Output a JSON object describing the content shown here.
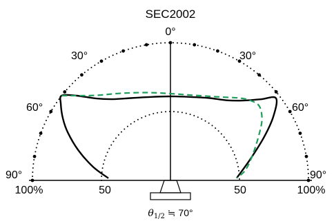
{
  "chart_data": {
    "type": "polar",
    "title": "SEC2002",
    "angle_labels": {
      "top": "0°",
      "left_30": "30°",
      "right_30": "30°",
      "left_60": "60°",
      "right_60": "60°",
      "left_90": "90°",
      "right_90": "90°"
    },
    "radial_labels": {
      "left_100": "100%",
      "left_50": "50",
      "right_50": "50",
      "right_100": "100%"
    },
    "radial_range": [
      0,
      100
    ],
    "grid": "dotted circles at 50% and 100%",
    "series": [
      {
        "color": "#000000",
        "style": "solid",
        "points": [
          {
            "angle": -88,
            "r": 45
          },
          {
            "angle": -80,
            "r": 57
          },
          {
            "angle": -72,
            "r": 70
          },
          {
            "angle": -65,
            "r": 82
          },
          {
            "angle": -60,
            "r": 90
          },
          {
            "angle": -55,
            "r": 97
          },
          {
            "angle": -52,
            "r": 100
          },
          {
            "angle": -48,
            "r": 92
          },
          {
            "angle": -42,
            "r": 80
          },
          {
            "angle": -35,
            "r": 72
          },
          {
            "angle": -25,
            "r": 66
          },
          {
            "angle": -12,
            "r": 62
          },
          {
            "angle": 0,
            "r": 61
          },
          {
            "angle": 12,
            "r": 62
          },
          {
            "angle": 25,
            "r": 66
          },
          {
            "angle": 35,
            "r": 71
          },
          {
            "angle": 42,
            "r": 78
          },
          {
            "angle": 48,
            "r": 88
          },
          {
            "angle": 52,
            "r": 97
          },
          {
            "angle": 58,
            "r": 88
          },
          {
            "angle": 65,
            "r": 75
          },
          {
            "angle": 75,
            "r": 60
          },
          {
            "angle": 88,
            "r": 48
          }
        ]
      },
      {
        "color": "#1e9e5a",
        "style": "dashed",
        "points": [
          {
            "angle": -52,
            "r": 100
          },
          {
            "angle": -42,
            "r": 83
          },
          {
            "angle": -30,
            "r": 73
          },
          {
            "angle": -15,
            "r": 66
          },
          {
            "angle": 0,
            "r": 63
          },
          {
            "angle": 15,
            "r": 64
          },
          {
            "angle": 30,
            "r": 70
          },
          {
            "angle": 40,
            "r": 78
          },
          {
            "angle": 45,
            "r": 82
          },
          {
            "angle": 50,
            "r": 84
          },
          {
            "angle": 56,
            "r": 80
          },
          {
            "angle": 62,
            "r": 73
          },
          {
            "angle": 72,
            "r": 63
          },
          {
            "angle": 82,
            "r": 55
          },
          {
            "angle": 88,
            "r": 48
          }
        ]
      }
    ]
  },
  "footer": {
    "theta": "θ",
    "sub": "1/2",
    "value": " ≒ 70°"
  }
}
